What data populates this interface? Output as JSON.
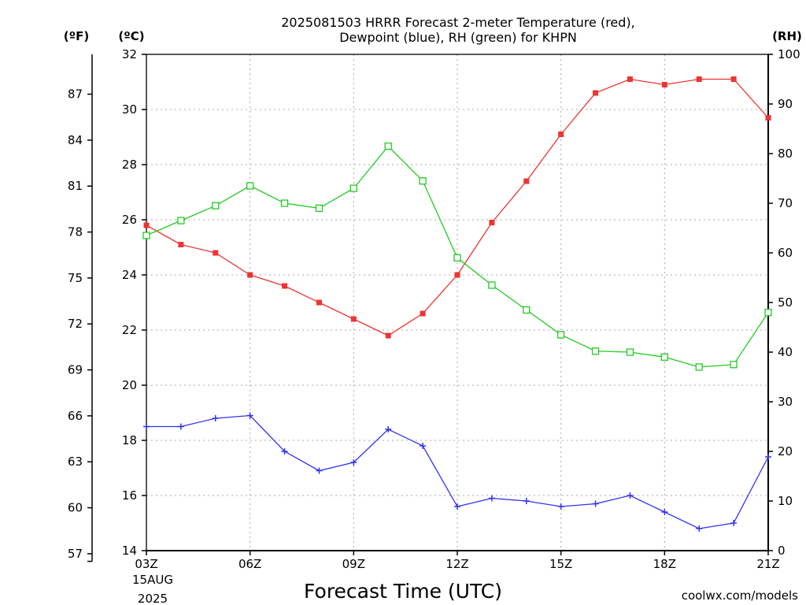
{
  "chart_data": {
    "type": "line",
    "title_lines": [
      "2025081503 HRRR Forecast 2-meter Temperature (red),",
      "Dewpoint (blue), RH (green) for KHPN"
    ],
    "xlabel": "Forecast Time (UTC)",
    "x_start_labels": [
      "03Z",
      "15AUG",
      "2025"
    ],
    "x_tick_labels": [
      "03Z",
      "06Z",
      "09Z",
      "12Z",
      "15Z",
      "18Z",
      "21Z"
    ],
    "x": [
      3,
      4,
      5,
      6,
      7,
      8,
      9,
      10,
      11,
      12,
      13,
      14,
      15,
      16,
      17,
      18,
      19,
      20,
      21
    ],
    "xlim": [
      3,
      21
    ],
    "left_axis_c": {
      "unit_label": "(ºC)",
      "ylim": [
        14,
        32
      ],
      "ticks": [
        "14",
        "16",
        "18",
        "20",
        "22",
        "24",
        "26",
        "28",
        "30",
        "32"
      ]
    },
    "left_axis_f": {
      "unit_label": "(ºF)",
      "ticks": [
        "57",
        "60",
        "63",
        "66",
        "69",
        "72",
        "75",
        "78",
        "81",
        "84",
        "87"
      ]
    },
    "right_axis_rh": {
      "unit_label": "(RH)",
      "ylim": [
        0,
        100
      ],
      "ticks": [
        "0",
        "10",
        "20",
        "30",
        "40",
        "50",
        "60",
        "70",
        "80",
        "90",
        "100"
      ]
    },
    "grid": true,
    "series": [
      {
        "key": "temperature",
        "color": "#ee3333",
        "marker": "filled-square",
        "axis": "C",
        "values": [
          25.8,
          25.1,
          24.8,
          24.0,
          23.6,
          23.0,
          22.4,
          21.8,
          22.6,
          24.0,
          25.9,
          27.4,
          29.1,
          30.6,
          31.1,
          30.9,
          31.1,
          31.1,
          29.7
        ]
      },
      {
        "key": "dewpoint",
        "color": "#3333ee",
        "marker": "plus",
        "axis": "C",
        "values": [
          18.5,
          18.5,
          18.8,
          18.9,
          17.6,
          16.9,
          17.2,
          18.4,
          17.8,
          15.6,
          15.9,
          15.8,
          15.6,
          15.7,
          16.0,
          15.4,
          14.8,
          15.0,
          17.4
        ]
      },
      {
        "key": "rh",
        "color": "#22cc22",
        "marker": "open-square",
        "axis": "RH",
        "values": [
          63.5,
          66.5,
          69.5,
          73.5,
          70,
          69,
          73,
          81.5,
          74.5,
          59,
          53.5,
          48.5,
          43.5,
          40.2,
          40,
          39,
          37,
          37.5,
          48
        ]
      }
    ],
    "credit": "coolwx.com/models",
    "credit_color": "#dd2222"
  }
}
